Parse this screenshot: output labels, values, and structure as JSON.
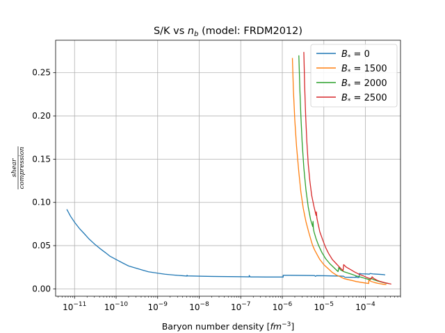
{
  "chart_data": {
    "type": "line",
    "title_main": "S/K vs ",
    "title_var": "n",
    "title_sub": "b",
    "title_tail": " (model: FRDM2012)",
    "xlabel_main": "Baryon number density [",
    "xlabel_unit": "fm",
    "xlabel_exp": "−3",
    "xlabel_close": "]",
    "ylabel_num": "shear",
    "ylabel_den": "compression",
    "x_scale": "log",
    "xlim": [
      3.5e-12,
      0.0007
    ],
    "ylim": [
      -0.0085,
      0.2875
    ],
    "x_ticks": [
      {
        "value": 1e-11,
        "base": "10",
        "exp": "−11"
      },
      {
        "value": 1e-10,
        "base": "10",
        "exp": "−10"
      },
      {
        "value": 1e-09,
        "base": "10",
        "exp": "−9"
      },
      {
        "value": 1e-08,
        "base": "10",
        "exp": "−8"
      },
      {
        "value": 1e-07,
        "base": "10",
        "exp": "−7"
      },
      {
        "value": 1e-06,
        "base": "10",
        "exp": "−6"
      },
      {
        "value": 1e-05,
        "base": "10",
        "exp": "−5"
      },
      {
        "value": 0.0001,
        "base": "10",
        "exp": "−4"
      }
    ],
    "y_ticks": [
      {
        "value": 0.0,
        "label": "0.00"
      },
      {
        "value": 0.05,
        "label": "0.05"
      },
      {
        "value": 0.1,
        "label": "0.10"
      },
      {
        "value": 0.15,
        "label": "0.15"
      },
      {
        "value": 0.2,
        "label": "0.20"
      },
      {
        "value": 0.25,
        "label": "0.25"
      }
    ],
    "grid": true,
    "legend_position": "top-right",
    "series": [
      {
        "name_var": "B",
        "name_sub": "*",
        "name_val": " = 0",
        "color": "#1f77b4",
        "x": [
          6.5e-12,
          8e-12,
          1e-11,
          1.3e-11,
          1.7e-11,
          2.2e-11,
          3e-11,
          4e-11,
          5.5e-11,
          7e-11,
          1e-10,
          1.5e-10,
          2e-10,
          3e-10,
          4.5e-10,
          6e-10,
          1e-09,
          1.5e-09,
          2.5e-09,
          4e-09,
          5.1e-09,
          5.1e-09,
          5.3e-09,
          8e-09,
          1.2e-08,
          2e-08,
          3e-08,
          5e-08,
          8e-08,
          1.2e-07,
          1.6e-07,
          1.6e-07,
          1.7e-07,
          2.5e-07,
          4e-07,
          7e-07,
          9e-07,
          1e-06,
          1.05e-06,
          1.05e-06,
          1.5e-06,
          2.5e-06,
          4e-06,
          6e-06,
          6.3e-06,
          6.6e-06,
          1e-05,
          1.5e-05,
          2.5e-05,
          3e-05,
          3.2e-05,
          4.5e-05,
          5.8e-05,
          6e-05,
          6.2e-05,
          7e-05,
          7.2e-05,
          8e-05,
          0.00011,
          0.000125,
          0.00013,
          0.00016,
          0.00022,
          0.00027,
          0.0003
        ],
        "y": [
          0.092,
          0.084,
          0.077,
          0.07,
          0.064,
          0.058,
          0.052,
          0.047,
          0.042,
          0.038,
          0.034,
          0.0295,
          0.0265,
          0.024,
          0.0215,
          0.0198,
          0.0182,
          0.017,
          0.016,
          0.0152,
          0.0148,
          0.0158,
          0.015,
          0.0148,
          0.0146,
          0.0144,
          0.0143,
          0.0142,
          0.0141,
          0.014,
          0.0139,
          0.0155,
          0.0138,
          0.0138,
          0.0137,
          0.0137,
          0.0137,
          0.0137,
          0.0136,
          0.0157,
          0.0157,
          0.0156,
          0.0155,
          0.0154,
          0.0145,
          0.0153,
          0.0152,
          0.015,
          0.0148,
          0.0146,
          0.0135,
          0.0134,
          0.0133,
          0.0148,
          0.0132,
          0.0131,
          0.0178,
          0.0175,
          0.0172,
          0.017,
          0.0178,
          0.0172,
          0.0168,
          0.0165,
          0.0162
        ]
      },
      {
        "name_var": "B",
        "name_sub": "*",
        "name_val": " = 1500",
        "color": "#ff7f0e",
        "x": [
          1.75e-06,
          1.85e-06,
          2e-06,
          2.2e-06,
          2.5e-06,
          2.8e-06,
          3.2e-06,
          3.7e-06,
          4.3e-06,
          4.8e-06,
          5e-06,
          5.4e-06,
          6e-06,
          7e-06,
          8e-06,
          1e-05,
          1.3e-05,
          1.6e-05,
          2e-05,
          2.5e-05,
          3e-05,
          4e-05,
          5e-05,
          6e-05,
          8e-05,
          0.0001,
          0.00012,
          0.000121,
          0.00014,
          0.00017,
          0.00021,
          0.00026,
          0.00032
        ],
        "y": [
          0.267,
          0.23,
          0.195,
          0.165,
          0.135,
          0.112,
          0.093,
          0.078,
          0.066,
          0.058,
          0.055,
          0.05,
          0.045,
          0.039,
          0.034,
          0.028,
          0.023,
          0.019,
          0.016,
          0.014,
          0.012,
          0.0105,
          0.0095,
          0.0085,
          0.0075,
          0.0068,
          0.0062,
          0.01,
          0.0085,
          0.0072,
          0.0062,
          0.0055,
          0.005
        ]
      },
      {
        "name_var": "B",
        "name_sub": "*",
        "name_val": " = 2000",
        "color": "#2ca02c",
        "x": [
          2.5e-06,
          2.65e-06,
          2.8e-06,
          3e-06,
          3.3e-06,
          3.7e-06,
          4.2e-06,
          4.8e-06,
          5.4e-06,
          5.5e-06,
          5.6e-06,
          5.8e-06,
          6.5e-06,
          7.5e-06,
          9e-06,
          1.1e-05,
          1.4e-05,
          1.8e-05,
          2.2e-05,
          2.3e-05,
          2.5e-05,
          3e-05,
          4e-05,
          5e-05,
          6e-05,
          8e-05,
          0.0001,
          0.00013,
          0.000135,
          0.00016,
          0.0002,
          0.00025,
          0.00032,
          0.00036
        ],
        "y": [
          0.27,
          0.23,
          0.2,
          0.17,
          0.14,
          0.115,
          0.095,
          0.08,
          0.072,
          0.078,
          0.07,
          0.066,
          0.058,
          0.05,
          0.042,
          0.035,
          0.029,
          0.024,
          0.02,
          0.025,
          0.022,
          0.02,
          0.018,
          0.0165,
          0.015,
          0.0135,
          0.012,
          0.0105,
          0.0125,
          0.0105,
          0.009,
          0.0077,
          0.0066,
          0.0062
        ]
      },
      {
        "name_var": "B",
        "name_sub": "*",
        "name_val": " = 2500",
        "color": "#d62728",
        "x": [
          3.3e-06,
          3.45e-06,
          3.65e-06,
          3.9e-06,
          4.2e-06,
          4.6e-06,
          5.1e-06,
          5.8e-06,
          6.5e-06,
          6.6e-06,
          6.8e-06,
          7.2e-06,
          8e-06,
          9.5e-06,
          1.1e-05,
          1.3e-05,
          1.6e-05,
          2e-05,
          2.5e-05,
          2.9e-05,
          3e-05,
          3.5e-05,
          4.5e-05,
          5.5e-05,
          7e-05,
          9e-05,
          0.00011,
          0.00014,
          0.000145,
          0.00016,
          0.00019,
          0.00023,
          0.00029,
          0.00035,
          0.00042
        ],
        "y": [
          0.274,
          0.235,
          0.2,
          0.17,
          0.145,
          0.125,
          0.108,
          0.095,
          0.085,
          0.089,
          0.082,
          0.076,
          0.066,
          0.056,
          0.048,
          0.041,
          0.034,
          0.029,
          0.024,
          0.021,
          0.028,
          0.025,
          0.022,
          0.0195,
          0.017,
          0.015,
          0.013,
          0.0115,
          0.014,
          0.012,
          0.01,
          0.0085,
          0.0072,
          0.0063,
          0.0055
        ]
      }
    ]
  }
}
